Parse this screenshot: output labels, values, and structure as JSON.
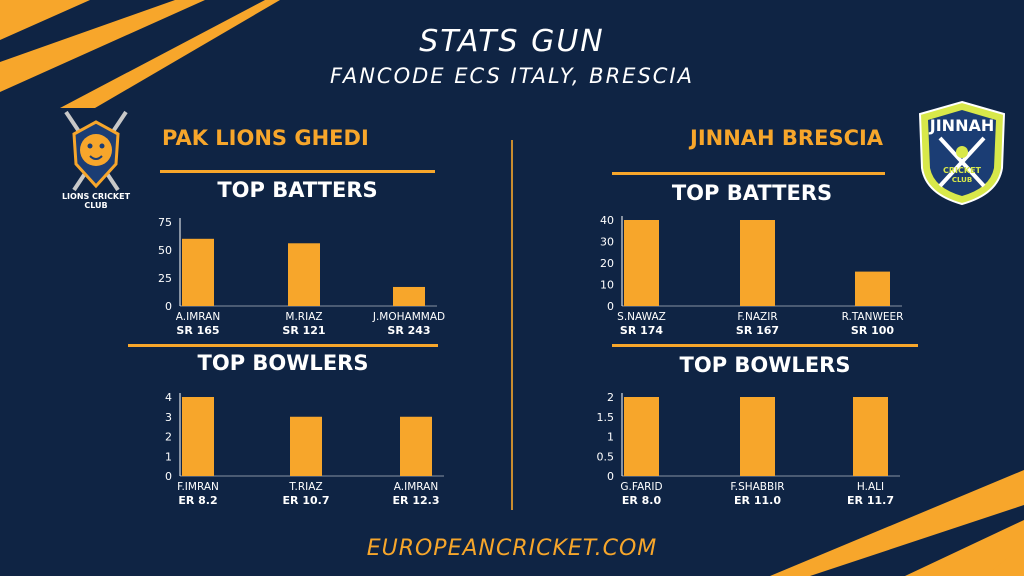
{
  "header": {
    "title": "STATS GUN",
    "subtitle": "FANCODE ECS ITALY, BRESCIA"
  },
  "footer": {
    "site": "EUROPEANCRICKET.COM"
  },
  "colors": {
    "background": "#0f2444",
    "accent": "#f7a62b",
    "text": "#ffffff"
  },
  "teams": [
    {
      "name": "PAK LIONS GHEDI",
      "logo_text": "LIONS CRICKET CLUB",
      "batters_title": "TOP BATTERS",
      "bowlers_title": "TOP BOWLERS"
    },
    {
      "name": "JINNAH BRESCIA",
      "logo_text": "JINNAH",
      "logo_subtext": "CRICKET",
      "logo_subtext2": "CLUB",
      "batters_title": "TOP BATTERS",
      "bowlers_title": "TOP BOWLERS"
    }
  ],
  "chart_data": [
    {
      "type": "bar",
      "title": "TOP BATTERS",
      "team": "PAK LIONS GHEDI",
      "categories": [
        "A.IMRAN",
        "M.RIAZ",
        "J.MOHAMMAD"
      ],
      "sublabels": [
        "SR 165",
        "SR 121",
        "SR 243"
      ],
      "values": [
        60,
        56,
        17
      ],
      "ylim": [
        0,
        75
      ],
      "yticks": [
        0,
        25,
        50,
        75
      ]
    },
    {
      "type": "bar",
      "title": "TOP BOWLERS",
      "team": "PAK LIONS GHEDI",
      "categories": [
        "F.IMRAN",
        "T.RIAZ",
        "A.IMRAN"
      ],
      "sublabels": [
        "ER 8.2",
        "ER 10.7",
        "ER 12.3"
      ],
      "values": [
        4,
        3,
        3
      ],
      "ylim": [
        0,
        4
      ],
      "yticks": [
        0,
        1,
        2,
        3,
        4
      ]
    },
    {
      "type": "bar",
      "title": "TOP BATTERS",
      "team": "JINNAH BRESCIA",
      "categories": [
        "S.NAWAZ",
        "F.NAZIR",
        "R.TANWEER"
      ],
      "sublabels": [
        "SR 174",
        "SR 167",
        "SR 100"
      ],
      "values": [
        40,
        40,
        16
      ],
      "ylim": [
        0,
        40
      ],
      "yticks": [
        0,
        10,
        20,
        30,
        40
      ]
    },
    {
      "type": "bar",
      "title": "TOP BOWLERS",
      "team": "JINNAH BRESCIA",
      "categories": [
        "G.FARID",
        "F.SHABBIR",
        "H.ALI"
      ],
      "sublabels": [
        "ER 8.0",
        "ER 11.0",
        "ER 11.7"
      ],
      "values": [
        2,
        2,
        2
      ],
      "ylim": [
        0,
        2
      ],
      "yticks": [
        0,
        0.5,
        1,
        1.5,
        2
      ]
    }
  ]
}
